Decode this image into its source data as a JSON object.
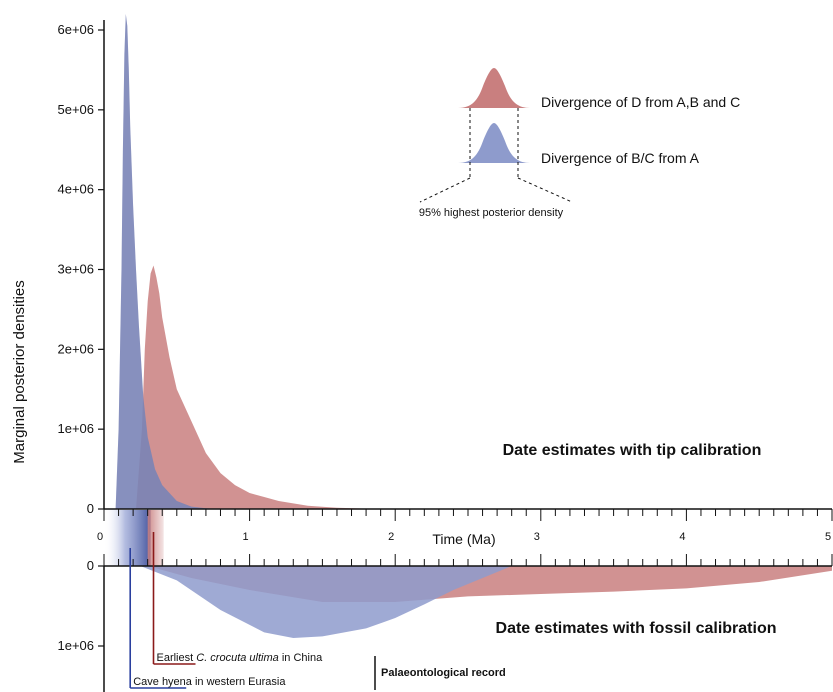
{
  "chart_data": {
    "type": "area",
    "ylabel": "Marginal posterior densities",
    "xlabel": "Time (Ma)",
    "xlim": [
      0,
      5
    ],
    "x_ticks": [
      "0",
      "1",
      "2",
      "3",
      "4",
      "5"
    ],
    "top_panel": {
      "title": "Date estimates with tip calibration",
      "ylim": [
        0,
        6200000
      ],
      "y_ticks": [
        "0",
        "1e+06",
        "2e+06",
        "3e+06",
        "4e+06",
        "5e+06",
        "6e+06"
      ],
      "series": [
        {
          "name": "Divergence of D from A,B and C",
          "color": "#c97f7f",
          "x": [
            0.22,
            0.26,
            0.28,
            0.3,
            0.32,
            0.34,
            0.36,
            0.38,
            0.4,
            0.45,
            0.5,
            0.6,
            0.7,
            0.8,
            0.9,
            1.0,
            1.1,
            1.2,
            1.4,
            1.6,
            1.8,
            2.0
          ],
          "y": [
            0,
            1000000,
            2000000,
            2600000,
            2950000,
            3050000,
            2900000,
            2700000,
            2400000,
            1900000,
            1500000,
            1100000,
            700000,
            450000,
            300000,
            200000,
            150000,
            100000,
            40000,
            15000,
            5000,
            0
          ]
        },
        {
          "name": "Divergence of B/C from A",
          "color": "#8e9bcc",
          "x": [
            0.08,
            0.1,
            0.12,
            0.13,
            0.14,
            0.15,
            0.16,
            0.17,
            0.18,
            0.2,
            0.22,
            0.24,
            0.27,
            0.3,
            0.35,
            0.4,
            0.5,
            0.6,
            0.7,
            0.8
          ],
          "y": [
            0,
            1000000,
            3000000,
            4500000,
            5700000,
            6200000,
            6050000,
            5500000,
            4800000,
            3800000,
            3000000,
            2300000,
            1400000,
            900000,
            500000,
            300000,
            100000,
            30000,
            10000,
            0
          ]
        }
      ],
      "hpd": [
        {
          "name": "Divergence of D from A,B and C",
          "range": [
            0.26,
            1.25
          ]
        },
        {
          "name": "Divergence of B/C from A",
          "range": [
            0.1,
            0.47
          ]
        }
      ]
    },
    "bottom_panel": {
      "title": "Date estimates with fossil calibration",
      "ylim": [
        0,
        1450000
      ],
      "y_ticks": [
        "0",
        "1e+06"
      ],
      "series": [
        {
          "name": "Divergence of D from A,B and C",
          "color": "#c97f7f",
          "x": [
            0.3,
            0.6,
            1.0,
            1.5,
            2.0,
            2.5,
            3.0,
            3.5,
            4.0,
            4.5,
            5.0
          ],
          "y": [
            0,
            150000,
            300000,
            450000,
            450000,
            380000,
            350000,
            320000,
            280000,
            200000,
            60000
          ]
        },
        {
          "name": "Divergence of B/C from A",
          "color": "#8e9bcc",
          "x": [
            0.25,
            0.5,
            0.8,
            1.1,
            1.3,
            1.5,
            1.8,
            2.0,
            2.2,
            2.4,
            2.6,
            2.8
          ],
          "y": [
            0,
            180000,
            550000,
            830000,
            900000,
            880000,
            780000,
            650000,
            480000,
            300000,
            150000,
            0
          ]
        }
      ]
    },
    "legend": {
      "items": [
        {
          "label": "Divergence of D from A,B and C",
          "color": "#c97f7f"
        },
        {
          "label": "Divergence of B/C from A",
          "color": "#8e9bcc"
        }
      ],
      "hpd_label": "95% highest posterior density"
    },
    "fossil_record": {
      "title": "Palaeontological record",
      "events": [
        {
          "label_prefix": "Earliest ",
          "label_italic": "C. crocuta ultima",
          "label_suffix": " in China",
          "x": 0.34,
          "color": "#8b1a1a"
        },
        {
          "label_prefix": "Cave hyena in western Eurasia",
          "label_italic": "",
          "label_suffix": "",
          "x": 0.18,
          "color": "#2a3f9e"
        }
      ]
    }
  }
}
